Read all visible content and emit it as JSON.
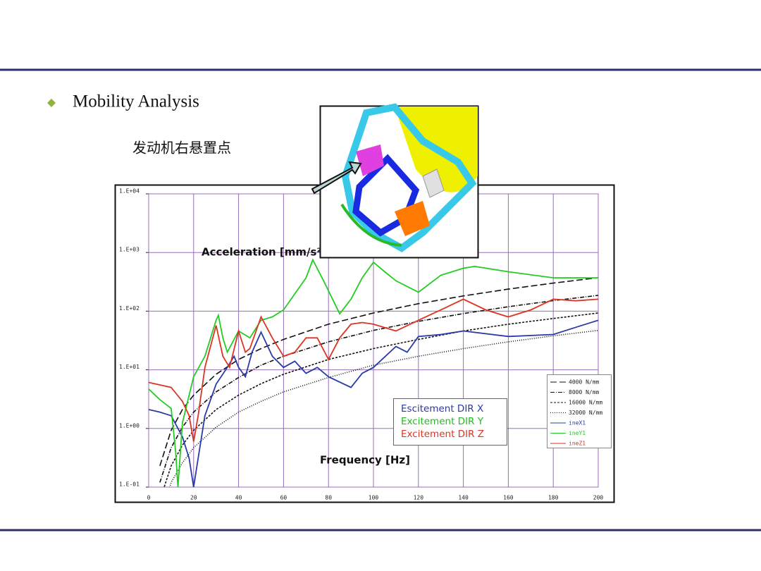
{
  "slide": {
    "bullet": "Mobility Analysis",
    "subtitle": "发动机右悬置点"
  },
  "chart_data": {
    "type": "line",
    "y_label": "Acceleration [mm/s²]",
    "x_label": "Frequency [Hz]",
    "log_y": true,
    "grid": true,
    "xlim": [
      0,
      200
    ],
    "xticks": [
      0,
      20,
      40,
      60,
      80,
      100,
      120,
      140,
      160,
      180,
      200
    ],
    "ylim": [
      0.1,
      10000
    ],
    "yticks": [
      {
        "value": 0.1,
        "label": "1.E-01"
      },
      {
        "value": 1,
        "label": "1.E+00"
      },
      {
        "value": 10,
        "label": "1.E+01"
      },
      {
        "value": 100,
        "label": "1.E+02"
      },
      {
        "value": 1000,
        "label": "1.E+03"
      },
      {
        "value": 10000,
        "label": "1.E+04"
      }
    ],
    "direction_labels": [
      {
        "text": "Escitement DIR X",
        "color": "#2a3aa8"
      },
      {
        "text": "Excitement DIR Y",
        "color": "#22bb22"
      },
      {
        "text": "Excitement DIR Z",
        "color": "#dd3322"
      }
    ],
    "series": [
      {
        "name": "4000 N/mm",
        "color": "#111111",
        "dash": "9 4",
        "x": [
          5,
          10,
          15,
          20,
          30,
          40,
          50,
          60,
          80,
          100,
          120,
          140,
          160,
          180,
          200
        ],
        "values": [
          0.23,
          0.93,
          2.1,
          3.7,
          8.4,
          15,
          23,
          33,
          60,
          93,
          134,
          182,
          238,
          301,
          372
        ]
      },
      {
        "name": "8000 N/mm",
        "color": "#111111",
        "dash": "6 2 1 2",
        "x": [
          5,
          10,
          15,
          20,
          30,
          40,
          50,
          60,
          80,
          100,
          120,
          140,
          160,
          180,
          200
        ],
        "values": [
          0.12,
          0.47,
          1.05,
          1.9,
          4.2,
          7.4,
          12,
          17,
          30,
          47,
          67,
          91,
          119,
          151,
          186
        ]
      },
      {
        "name": "16000 N/mm",
        "color": "#111111",
        "dash": "3 2",
        "x": [
          5,
          10,
          15,
          20,
          30,
          40,
          50,
          60,
          80,
          100,
          120,
          140,
          160,
          180,
          200
        ],
        "values": [
          0.06,
          0.23,
          0.52,
          0.93,
          2.1,
          3.7,
          5.8,
          8.4,
          15,
          23,
          33,
          46,
          60,
          75,
          93
        ]
      },
      {
        "name": "32000 N/mm",
        "color": "#111111",
        "dash": "1 2",
        "x": [
          5,
          10,
          15,
          20,
          30,
          40,
          50,
          60,
          80,
          100,
          120,
          140,
          160,
          180,
          200
        ],
        "values": [
          0.03,
          0.12,
          0.26,
          0.47,
          1.05,
          1.9,
          2.9,
          4.2,
          7.4,
          12,
          17,
          23,
          30,
          38,
          47
        ]
      },
      {
        "name": "ineX1",
        "color": "#2a3aa8",
        "x": [
          0,
          5,
          10,
          15,
          18,
          20,
          22,
          25,
          30,
          35,
          38,
          40,
          43,
          46,
          50,
          55,
          60,
          65,
          70,
          75,
          80,
          90,
          95,
          100,
          110,
          115,
          120,
          130,
          140,
          160,
          180,
          190,
          200
        ],
        "values": [
          2.1,
          1.9,
          1.65,
          0.72,
          0.31,
          0.1,
          0.31,
          1.65,
          5.7,
          11,
          17,
          11,
          7.6,
          20,
          44,
          17,
          11,
          14,
          8.7,
          11,
          7.6,
          5,
          8.7,
          11,
          25,
          20,
          37,
          40,
          46,
          37,
          40,
          53,
          70
        ]
      },
      {
        "name": "ineY1",
        "color": "#22cc22",
        "x": [
          0,
          5,
          10,
          12,
          13,
          15,
          20,
          25,
          30,
          31,
          33,
          35,
          40,
          45,
          50,
          55,
          60,
          70,
          73,
          78,
          85,
          90,
          95,
          100,
          105,
          110,
          120,
          130,
          140,
          145,
          160,
          180,
          200
        ],
        "values": [
          4.7,
          3.1,
          2.2,
          0.4,
          0.1,
          1.25,
          7.6,
          17,
          70,
          85,
          35,
          20,
          46,
          35,
          70,
          80,
          105,
          370,
          750,
          320,
          90,
          160,
          370,
          680,
          470,
          330,
          210,
          410,
          540,
          580,
          470,
          370,
          370
        ]
      },
      {
        "name": "ineZ1",
        "color": "#dd3322",
        "x": [
          0,
          10,
          15,
          18,
          20,
          22,
          25,
          30,
          33,
          36,
          40,
          43,
          45,
          50,
          55,
          60,
          65,
          70,
          75,
          80,
          85,
          90,
          95,
          100,
          110,
          120,
          130,
          140,
          150,
          160,
          170,
          180,
          190,
          200
        ],
        "values": [
          6.1,
          5,
          2.9,
          1.65,
          0.6,
          1.65,
          11,
          57,
          17,
          11,
          46,
          20,
          23,
          80,
          35,
          17,
          20,
          35,
          35,
          15,
          35,
          60,
          64,
          60,
          46,
          70,
          105,
          160,
          105,
          80,
          105,
          160,
          150,
          160
        ]
      }
    ]
  }
}
